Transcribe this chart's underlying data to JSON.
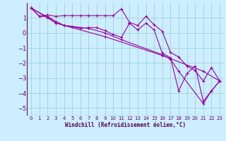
{
  "title": "",
  "xlabel": "Windchill (Refroidissement éolien,°C)",
  "ylabel": "",
  "bg_color": "#cceeff",
  "grid_color": "#99cccc",
  "line_color": "#990099",
  "marker": "+",
  "xlim": [
    -0.5,
    23.5
  ],
  "ylim": [
    -5.5,
    2.0
  ],
  "xticks": [
    0,
    1,
    2,
    3,
    4,
    5,
    6,
    7,
    8,
    9,
    10,
    11,
    12,
    13,
    14,
    15,
    16,
    17,
    18,
    19,
    20,
    21,
    22,
    23
  ],
  "yticks": [
    -5,
    -4,
    -3,
    -2,
    -1,
    0,
    1
  ],
  "series1": [
    [
      0,
      1.65
    ],
    [
      1,
      1.1
    ],
    [
      2,
      1.2
    ],
    [
      3,
      1.1
    ],
    [
      4,
      1.15
    ],
    [
      5,
      1.15
    ],
    [
      6,
      1.15
    ],
    [
      7,
      1.15
    ],
    [
      8,
      1.15
    ],
    [
      9,
      1.15
    ],
    [
      10,
      1.15
    ],
    [
      11,
      1.6
    ],
    [
      12,
      0.7
    ],
    [
      13,
      0.5
    ],
    [
      14,
      1.1
    ],
    [
      15,
      0.55
    ],
    [
      16,
      0.1
    ],
    [
      17,
      -1.3
    ],
    [
      18,
      -1.6
    ],
    [
      19,
      -2.2
    ],
    [
      20,
      -2.5
    ],
    [
      21,
      -3.2
    ],
    [
      22,
      -2.3
    ],
    [
      23,
      -3.2
    ]
  ],
  "series2": [
    [
      0,
      1.65
    ],
    [
      1,
      1.1
    ],
    [
      2,
      1.1
    ],
    [
      3,
      0.75
    ],
    [
      4,
      0.5
    ],
    [
      5,
      0.4
    ],
    [
      6,
      0.3
    ],
    [
      7,
      0.35
    ],
    [
      8,
      0.35
    ],
    [
      9,
      0.15
    ],
    [
      10,
      -0.1
    ],
    [
      11,
      -0.3
    ],
    [
      12,
      0.65
    ],
    [
      13,
      0.2
    ],
    [
      14,
      0.65
    ],
    [
      15,
      0.2
    ],
    [
      16,
      -1.35
    ],
    [
      17,
      -1.65
    ],
    [
      18,
      -3.85
    ],
    [
      19,
      -2.7
    ],
    [
      20,
      -2.2
    ],
    [
      21,
      -4.55
    ],
    [
      22,
      -3.85
    ],
    [
      23,
      -3.2
    ]
  ],
  "series3": [
    [
      0,
      1.65
    ],
    [
      2,
      1.0
    ],
    [
      3,
      0.65
    ],
    [
      9,
      -0.25
    ],
    [
      16,
      -1.5
    ],
    [
      21,
      -2.55
    ],
    [
      23,
      -3.2
    ]
  ],
  "series4": [
    [
      0,
      1.65
    ],
    [
      3,
      0.75
    ],
    [
      4,
      0.5
    ],
    [
      7,
      0.3
    ],
    [
      9,
      -0.0
    ],
    [
      11,
      -0.45
    ],
    [
      16,
      -1.45
    ],
    [
      17,
      -1.75
    ],
    [
      18,
      -2.55
    ],
    [
      21,
      -4.7
    ],
    [
      22,
      -3.85
    ],
    [
      23,
      -3.2
    ]
  ]
}
